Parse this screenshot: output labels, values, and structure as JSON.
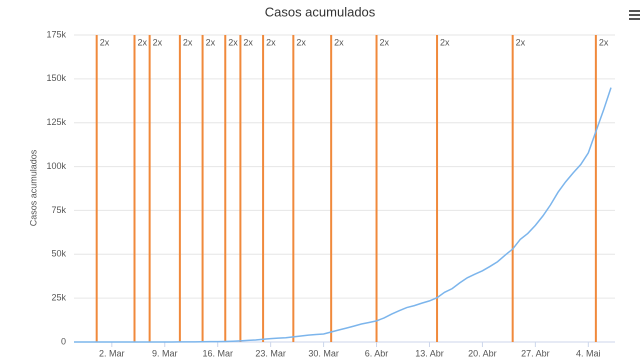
{
  "chart_data": {
    "type": "line",
    "title": "Casos acumulados",
    "y_label": "Casos acumulados",
    "categories": [
      null,
      null,
      null,
      null,
      null,
      "2. Mar",
      null,
      null,
      null,
      null,
      null,
      null,
      "9. Mar",
      null,
      null,
      null,
      null,
      null,
      null,
      "16. Mar",
      null,
      null,
      null,
      null,
      null,
      null,
      "23. Mar",
      null,
      null,
      null,
      null,
      null,
      null,
      "30. Mar",
      null,
      null,
      null,
      null,
      null,
      null,
      "6. Abr",
      null,
      null,
      null,
      null,
      null,
      null,
      "13. Abr",
      null,
      null,
      null,
      null,
      null,
      null,
      "20. Abr",
      null,
      null,
      null,
      null,
      null,
      null,
      "27. Abr",
      null,
      null,
      null,
      null,
      null,
      null,
      "4. Mai",
      null,
      null,
      null
    ],
    "series": [
      {
        "name": "Casos acumulados",
        "color": "#7cb5ec",
        "values": [
          1,
          1,
          1,
          1,
          2,
          2,
          2,
          3,
          8,
          13,
          19,
          25,
          25,
          34,
          52,
          77,
          98,
          121,
          200,
          234,
          291,
          428,
          621,
          904,
          1128,
          1546,
          1891,
          2201,
          2433,
          2915,
          3417,
          3904,
          4256,
          4579,
          5717,
          6836,
          7910,
          9056,
          10278,
          11130,
          12056,
          13717,
          15927,
          17857,
          19638,
          20727,
          22169,
          23430,
          25262,
          28320,
          30425,
          33682,
          36599,
          38654,
          40581,
          43079,
          45757,
          49492,
          52995,
          58509,
          61888,
          66501,
          71886,
          78162,
          85380,
          91299,
          96396,
          101147,
          107780,
          120000,
          132000,
          145000
        ]
      }
    ],
    "annotations": {
      "text": "2x",
      "color": "#f0893b",
      "at": [
        3,
        8,
        10,
        14,
        17,
        20,
        22,
        25,
        29,
        34,
        40,
        48,
        58,
        69
      ]
    },
    "ylim": [
      0,
      175000
    ],
    "yticks": [
      0,
      {
        "value": 25000,
        "label": "25k"
      },
      {
        "value": 50000,
        "label": "50k"
      },
      {
        "value": 75000,
        "label": "75k"
      },
      {
        "value": 100000,
        "label": "100k"
      },
      {
        "value": 125000,
        "label": "125k"
      },
      {
        "value": 150000,
        "label": "150k"
      },
      {
        "value": 175000,
        "label": "175k"
      }
    ],
    "grid": true
  }
}
